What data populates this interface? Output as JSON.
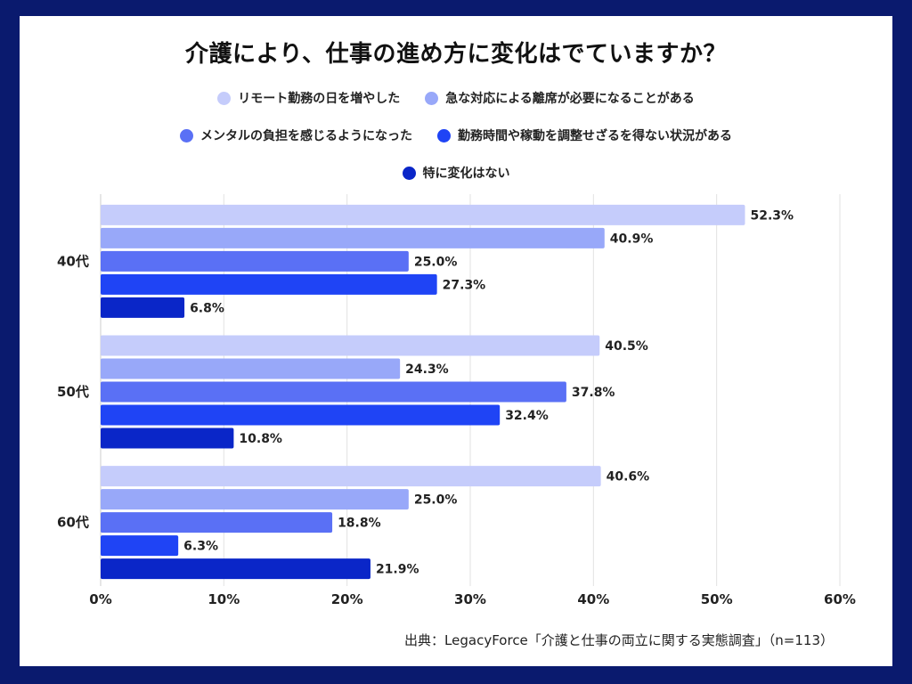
{
  "chart_data": {
    "type": "bar",
    "orientation": "horizontal",
    "title": "介護により、仕事の進め方に変化はでていますか？",
    "categories": [
      "40代",
      "50代",
      "60代"
    ],
    "series": [
      {
        "name": "リモート勤務の日を増やした",
        "color": "#c5ccfb",
        "values": [
          52.3,
          40.5,
          40.6
        ]
      },
      {
        "name": "急な対応による離席が必要になることがある",
        "color": "#98a8f9",
        "values": [
          40.9,
          24.3,
          25.0
        ]
      },
      {
        "name": "メンタルの負担を感じるようになった",
        "color": "#5a70f5",
        "values": [
          25.0,
          37.8,
          18.8
        ]
      },
      {
        "name": "勤務時間や稼動を調整せざるを得ない状況がある",
        "color": "#1f44f5",
        "values": [
          27.3,
          32.4,
          6.3
        ]
      },
      {
        "name": "特に変化はない",
        "color": "#0a26c8",
        "values": [
          6.8,
          10.8,
          21.9
        ]
      }
    ],
    "xlim": [
      0,
      60
    ],
    "xticks": [
      "0%",
      "10%",
      "20%",
      "30%",
      "40%",
      "50%",
      "60%"
    ],
    "value_suffix": "%",
    "grid": true,
    "legend_position": "top"
  },
  "source": "出典：LegacyForce「介護と仕事の両立に関する実態調査」（n=113）"
}
